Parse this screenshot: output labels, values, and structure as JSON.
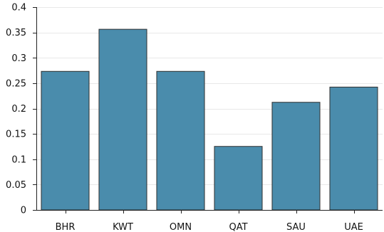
{
  "chart_data": {
    "type": "bar",
    "categories": [
      "BHR",
      "KWT",
      "OMN",
      "QAT",
      "SAU",
      "UAE"
    ],
    "values": [
      0.274,
      0.357,
      0.274,
      0.126,
      0.213,
      0.243
    ],
    "ylim": [
      0,
      0.4
    ],
    "yticks": [
      "0",
      "0.05",
      "0.1",
      "0.15",
      "0.2",
      "0.25",
      "0.3",
      "0.35",
      "0.4"
    ],
    "grid": true,
    "bar_color": "#4a8cac",
    "bar_edge_color": "#2f2f2f"
  }
}
